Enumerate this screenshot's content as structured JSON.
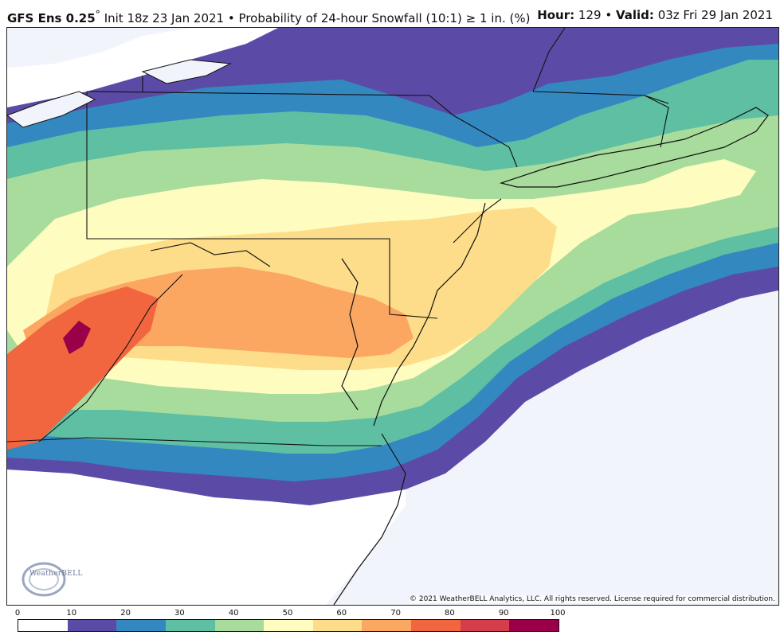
{
  "header": {
    "model": "GFS Ens 0.25",
    "init": "Init 18z 23 Jan 2021",
    "sep": "•",
    "product": "Probability of 24-hour Snowfall (10:1) ≥ 1 in. (%)",
    "hour_label": "Hour:",
    "hour_value": "129",
    "valid_label": "Valid:",
    "valid_value": "03z Fri 29 Jan 2021"
  },
  "map": {
    "copyright": "© 2021 WeatherBELL Analytics, LLC. All rights reserved. License required for commercial distribution.",
    "logo_text": "WeatherBELL",
    "background_color": "#f1f4fb",
    "land_color": "#ffffff"
  },
  "legend": {
    "ticks": [
      "0",
      "10",
      "20",
      "30",
      "40",
      "50",
      "60",
      "70",
      "80",
      "90",
      "100"
    ],
    "colors": [
      "#ffffff",
      "#5c4ba6",
      "#3388c0",
      "#5ebfa3",
      "#a8dc9c",
      "#fefdbf",
      "#fddd8a",
      "#fba762",
      "#f1663f",
      "#d63d4b",
      "#9a0049"
    ]
  }
}
